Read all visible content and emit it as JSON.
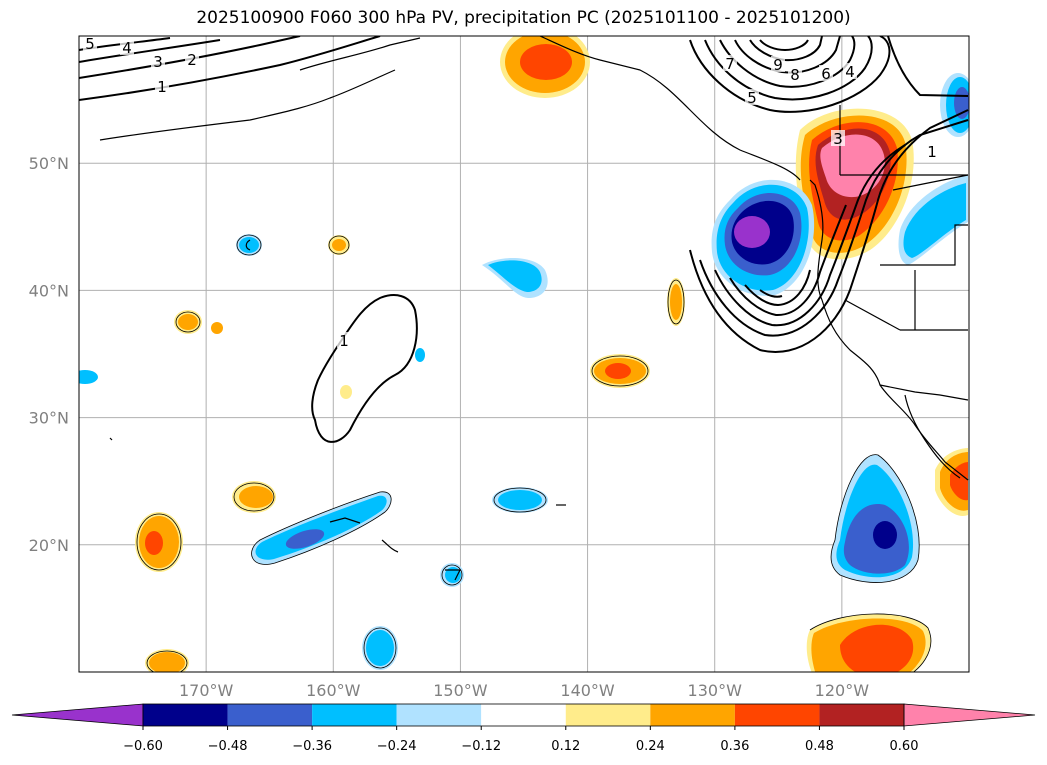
{
  "title": "2025100900 F060 300 hPa PV, precipitation PC (2025101100 - 2025101200)",
  "map": {
    "lon_range": [
      -180,
      -110
    ],
    "lat_range": [
      10,
      60
    ],
    "lat_gridlines": [
      {
        "value": 50,
        "label": "50°N"
      },
      {
        "value": 40,
        "label": "40°N"
      },
      {
        "value": 30,
        "label": "30°N"
      },
      {
        "value": 20,
        "label": "20°N"
      }
    ],
    "lon_gridlines": [
      {
        "value": -170,
        "label": "170°W"
      },
      {
        "value": -160,
        "label": "160°W"
      },
      {
        "value": -150,
        "label": "150°W"
      },
      {
        "value": -140,
        "label": "140°W"
      },
      {
        "value": -130,
        "label": "130°W"
      },
      {
        "value": -120,
        "label": "120°W"
      }
    ],
    "gridline_color": "#b0b0b0"
  },
  "pv_contours": {
    "labels": [
      "5",
      "4",
      "3",
      "2",
      "1",
      "7",
      "9",
      "8",
      "6",
      "4",
      "5",
      "1",
      "1",
      "3"
    ]
  },
  "colorbar": {
    "colors": [
      "#9932cc",
      "#00008b",
      "#3a5fcd",
      "#00bfff",
      "#b0e2ff",
      "#ffffff",
      "#ffec8b",
      "#ffa500",
      "#ff4500",
      "#b22222",
      "#ff82ab"
    ],
    "tick_labels": [
      "−0.60",
      "−0.48",
      "−0.36",
      "−0.24",
      "−0.12",
      "0.12",
      "0.24",
      "0.36",
      "0.48",
      "0.60"
    ],
    "extend": "both"
  }
}
